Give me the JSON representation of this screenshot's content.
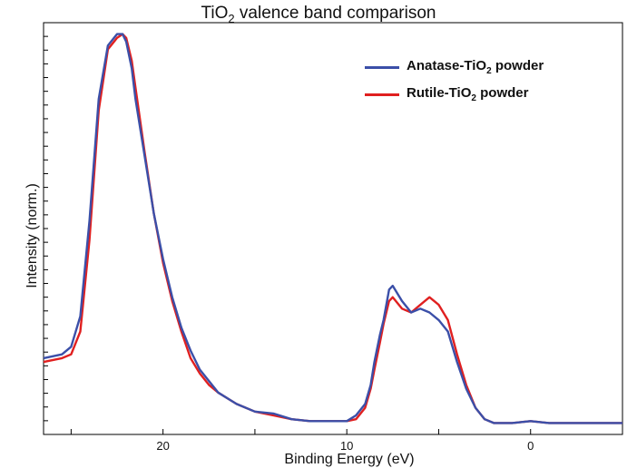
{
  "chart_data": {
    "type": "line",
    "title": {
      "pre": "TiO",
      "sub": "2",
      "post": " valence band comparison"
    },
    "xlabel": "Binding Energy (eV)",
    "ylabel": "Intensity (norm.)",
    "x_reversed": true,
    "xlim": [
      26.5,
      -5.0
    ],
    "ylim": [
      -0.03,
      1.05
    ],
    "xticks": [
      20,
      10,
      0
    ],
    "xtick_labels": [
      "20",
      "10",
      "0"
    ],
    "legend_position": "top-right",
    "colors": {
      "anatase": "#3b4fa8",
      "rutile": "#e02020",
      "axis": "#000000"
    },
    "series": [
      {
        "key": "anatase",
        "label": {
          "pre": "Anatase-TiO",
          "sub": "2",
          "post": " powder"
        },
        "color": "#3b4fa8",
        "x": [
          26.5,
          25.5,
          25.0,
          24.5,
          24.0,
          23.5,
          23.0,
          22.5,
          22.2,
          22.0,
          21.7,
          21.5,
          21.0,
          20.5,
          20.0,
          19.5,
          19.0,
          18.5,
          18.0,
          17.5,
          17.0,
          16.0,
          15.0,
          14.0,
          13.0,
          12.0,
          11.0,
          10.0,
          9.5,
          9.0,
          8.7,
          8.5,
          8.2,
          8.0,
          7.7,
          7.5,
          7.0,
          6.5,
          6.0,
          5.5,
          5.0,
          4.5,
          4.0,
          3.5,
          3.0,
          2.5,
          2.0,
          1.5,
          1.0,
          0.0,
          -1.0,
          -2.0,
          -3.0,
          -5.0
        ],
        "y": [
          0.17,
          0.18,
          0.2,
          0.28,
          0.53,
          0.85,
          0.99,
          1.02,
          1.02,
          1.0,
          0.93,
          0.85,
          0.7,
          0.55,
          0.43,
          0.33,
          0.25,
          0.19,
          0.14,
          0.11,
          0.08,
          0.05,
          0.03,
          0.025,
          0.01,
          0.005,
          0.005,
          0.005,
          0.02,
          0.05,
          0.1,
          0.16,
          0.23,
          0.27,
          0.35,
          0.36,
          0.32,
          0.29,
          0.3,
          0.29,
          0.27,
          0.24,
          0.16,
          0.09,
          0.04,
          0.01,
          0.0,
          0.0,
          0.0,
          0.005,
          0.0,
          0.0,
          0.0,
          0.0
        ]
      },
      {
        "key": "rutile",
        "label": {
          "pre": "Rutile-TiO",
          "sub": "2",
          "post": " powder"
        },
        "color": "#e02020",
        "x": [
          26.5,
          25.5,
          25.0,
          24.5,
          24.0,
          23.5,
          23.0,
          22.5,
          22.2,
          22.0,
          21.7,
          21.5,
          21.0,
          20.5,
          20.0,
          19.5,
          19.0,
          18.5,
          18.0,
          17.5,
          17.0,
          16.0,
          15.0,
          14.0,
          13.0,
          12.0,
          11.0,
          10.0,
          9.5,
          9.0,
          8.7,
          8.5,
          8.2,
          8.0,
          7.7,
          7.5,
          7.0,
          6.5,
          6.0,
          5.5,
          5.0,
          4.5,
          4.0,
          3.5,
          3.0,
          2.5,
          2.0,
          1.5,
          1.0,
          0.0,
          -1.0,
          -2.0,
          -3.0,
          -5.0
        ],
        "y": [
          0.16,
          0.17,
          0.18,
          0.24,
          0.48,
          0.82,
          0.98,
          1.01,
          1.02,
          1.01,
          0.95,
          0.88,
          0.71,
          0.55,
          0.42,
          0.32,
          0.24,
          0.17,
          0.13,
          0.1,
          0.08,
          0.05,
          0.03,
          0.02,
          0.01,
          0.005,
          0.005,
          0.005,
          0.01,
          0.04,
          0.09,
          0.14,
          0.21,
          0.26,
          0.32,
          0.33,
          0.3,
          0.29,
          0.31,
          0.33,
          0.31,
          0.27,
          0.18,
          0.1,
          0.04,
          0.01,
          0.0,
          0.0,
          0.0,
          0.005,
          0.0,
          0.0,
          0.0,
          0.0
        ]
      }
    ]
  }
}
